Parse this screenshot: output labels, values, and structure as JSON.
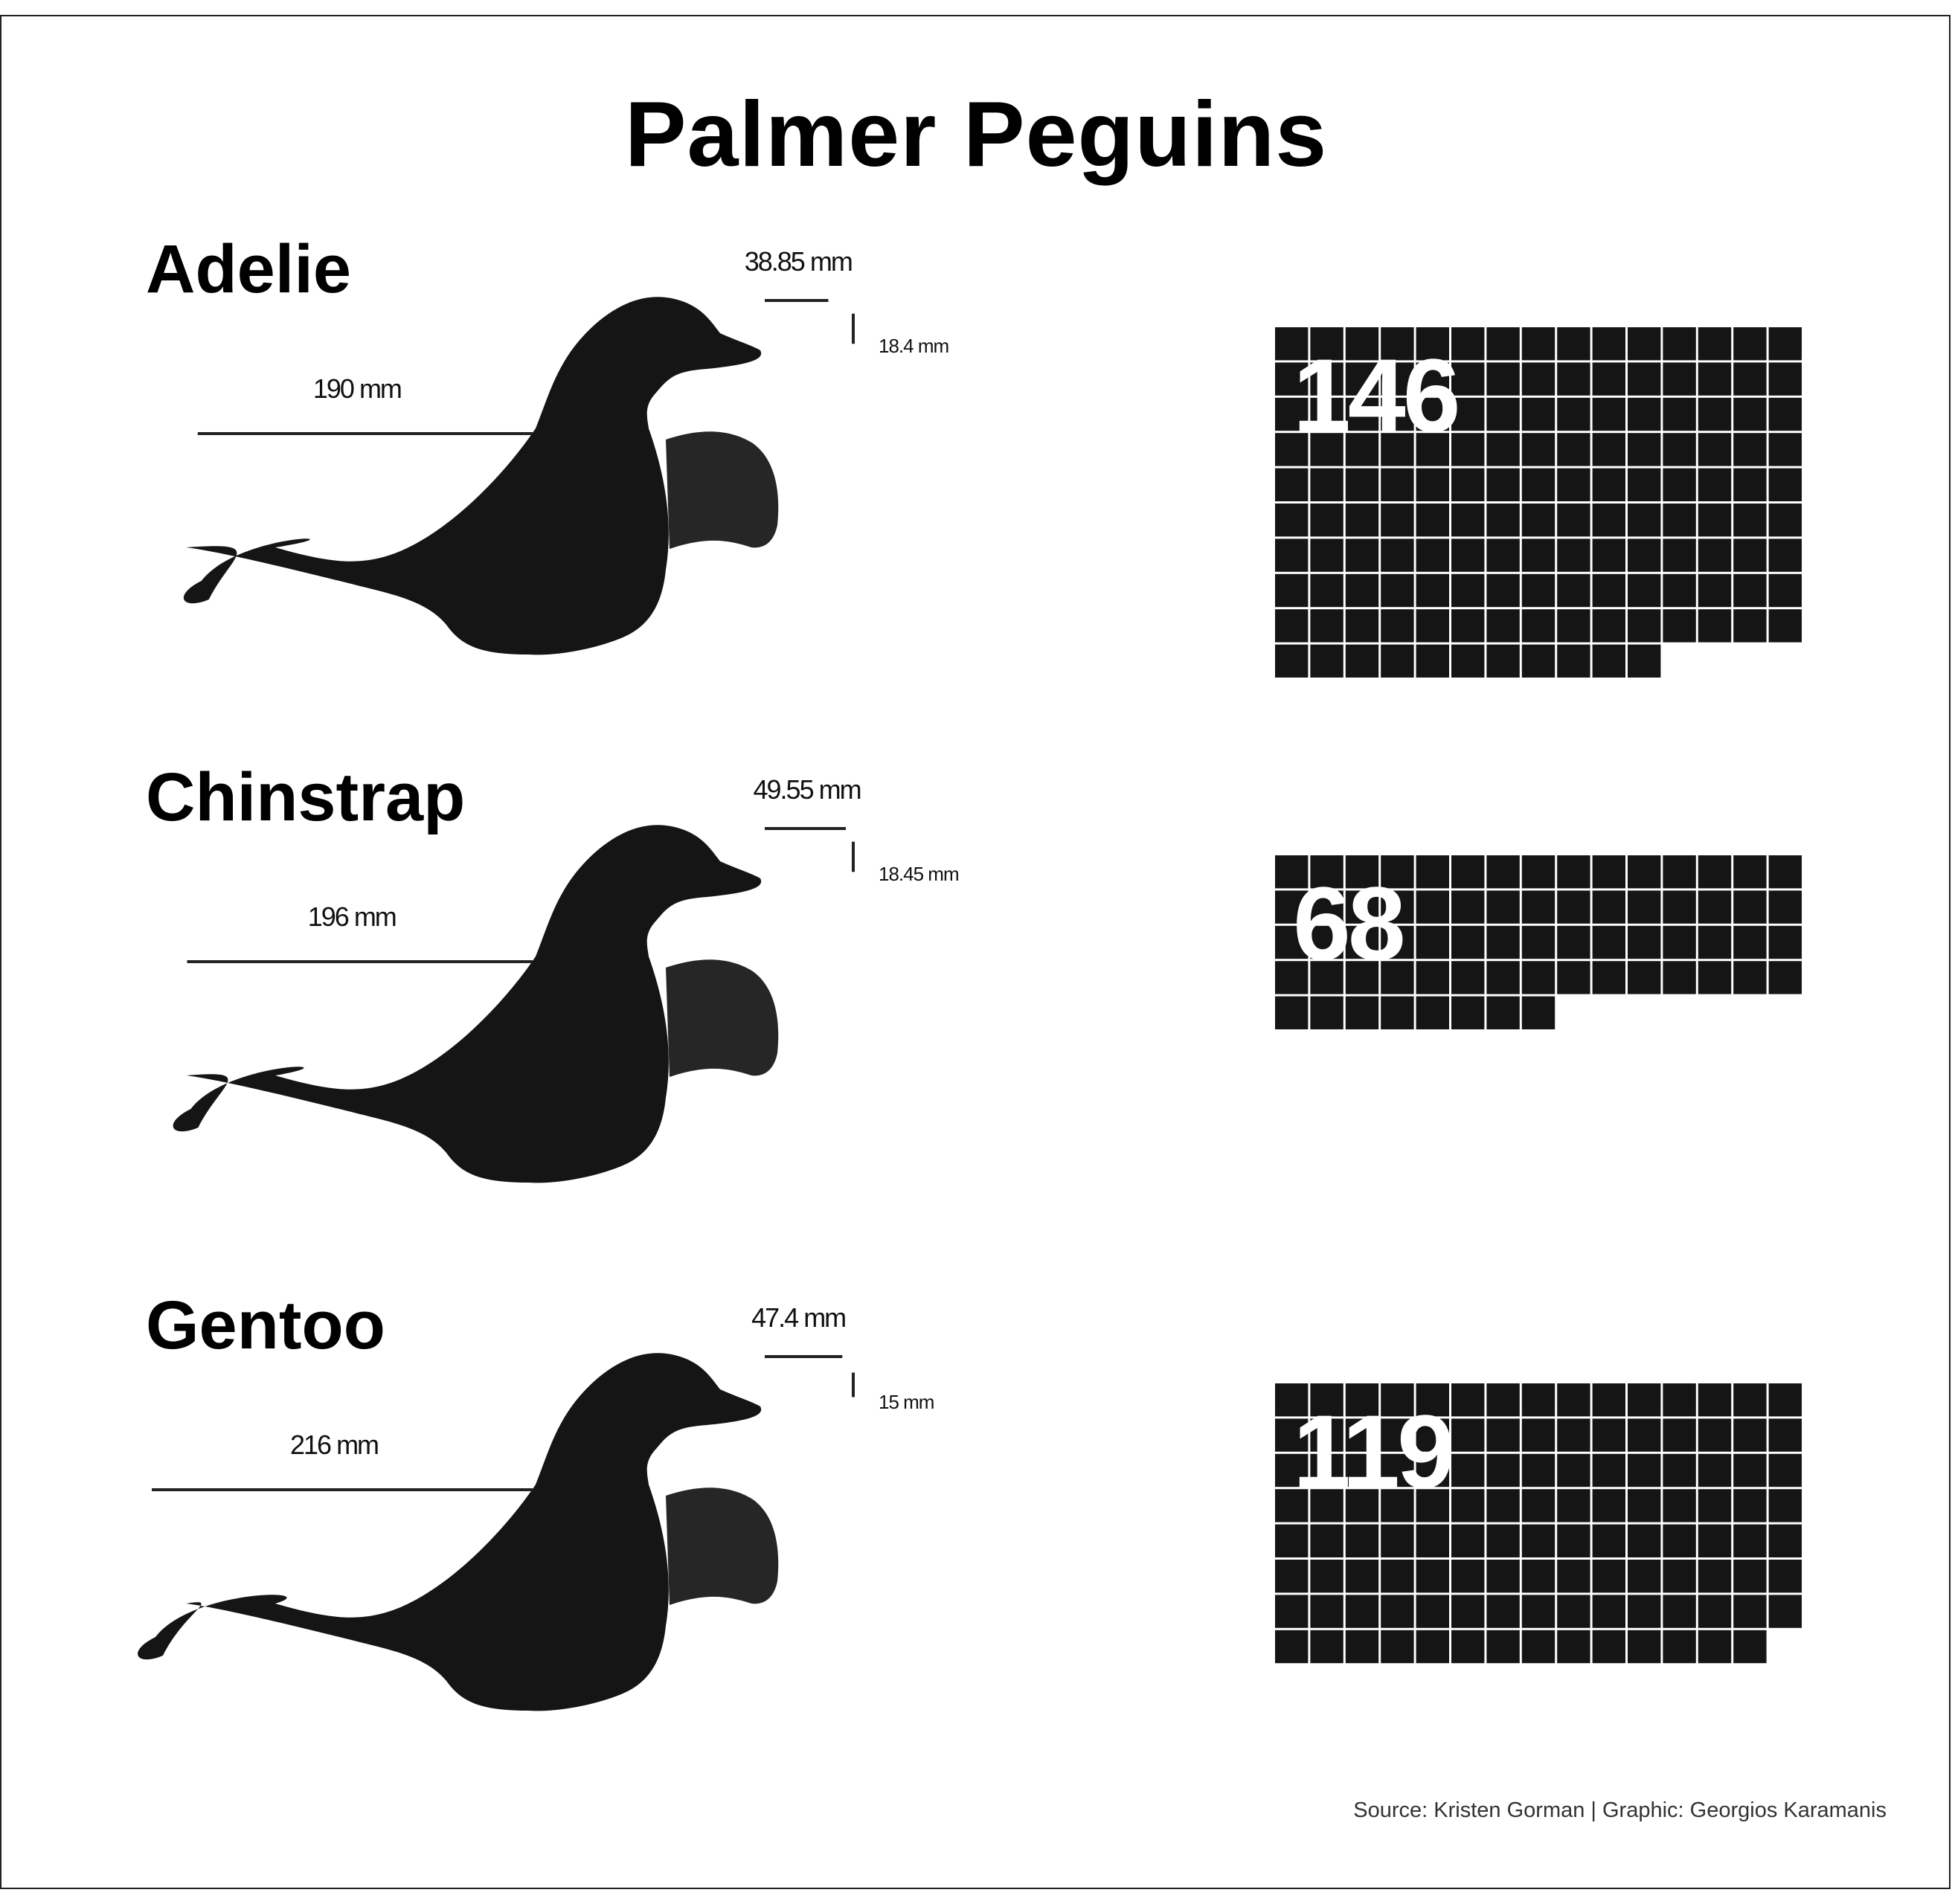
{
  "title": "Palmer Peguins",
  "source": "Source: Kristen Gorman | Graphic: Georgios Karamanis",
  "colors": {
    "body": "#151515",
    "flipper": "#262626",
    "background": "#ffffff",
    "cell_gap": "#ffffff"
  },
  "chart_data": {
    "type": "waffle",
    "columns": 15,
    "categories": [
      "Adelie",
      "Chinstrap",
      "Gentoo"
    ],
    "series": [
      {
        "name": "Adelie",
        "count": 146,
        "count_label": "146",
        "flipper_length_mm": 190,
        "flipper_label": "190 mm",
        "bill_length_mm": 38.85,
        "bill_length_label": "38.85 mm",
        "bill_depth_mm": 18.4,
        "bill_depth_label": "18.4 mm"
      },
      {
        "name": "Chinstrap",
        "count": 68,
        "count_label": "68",
        "flipper_length_mm": 196,
        "flipper_label": "196 mm",
        "bill_length_mm": 49.55,
        "bill_length_label": "49.55 mm",
        "bill_depth_mm": 18.45,
        "bill_depth_label": "18.45 mm"
      },
      {
        "name": "Gentoo",
        "count": 119,
        "count_label": "119",
        "flipper_length_mm": 216,
        "flipper_label": "216 mm",
        "bill_length_mm": 47.4,
        "bill_length_label": "47.4 mm",
        "bill_depth_mm": 15,
        "bill_depth_label": "15 mm"
      }
    ]
  }
}
